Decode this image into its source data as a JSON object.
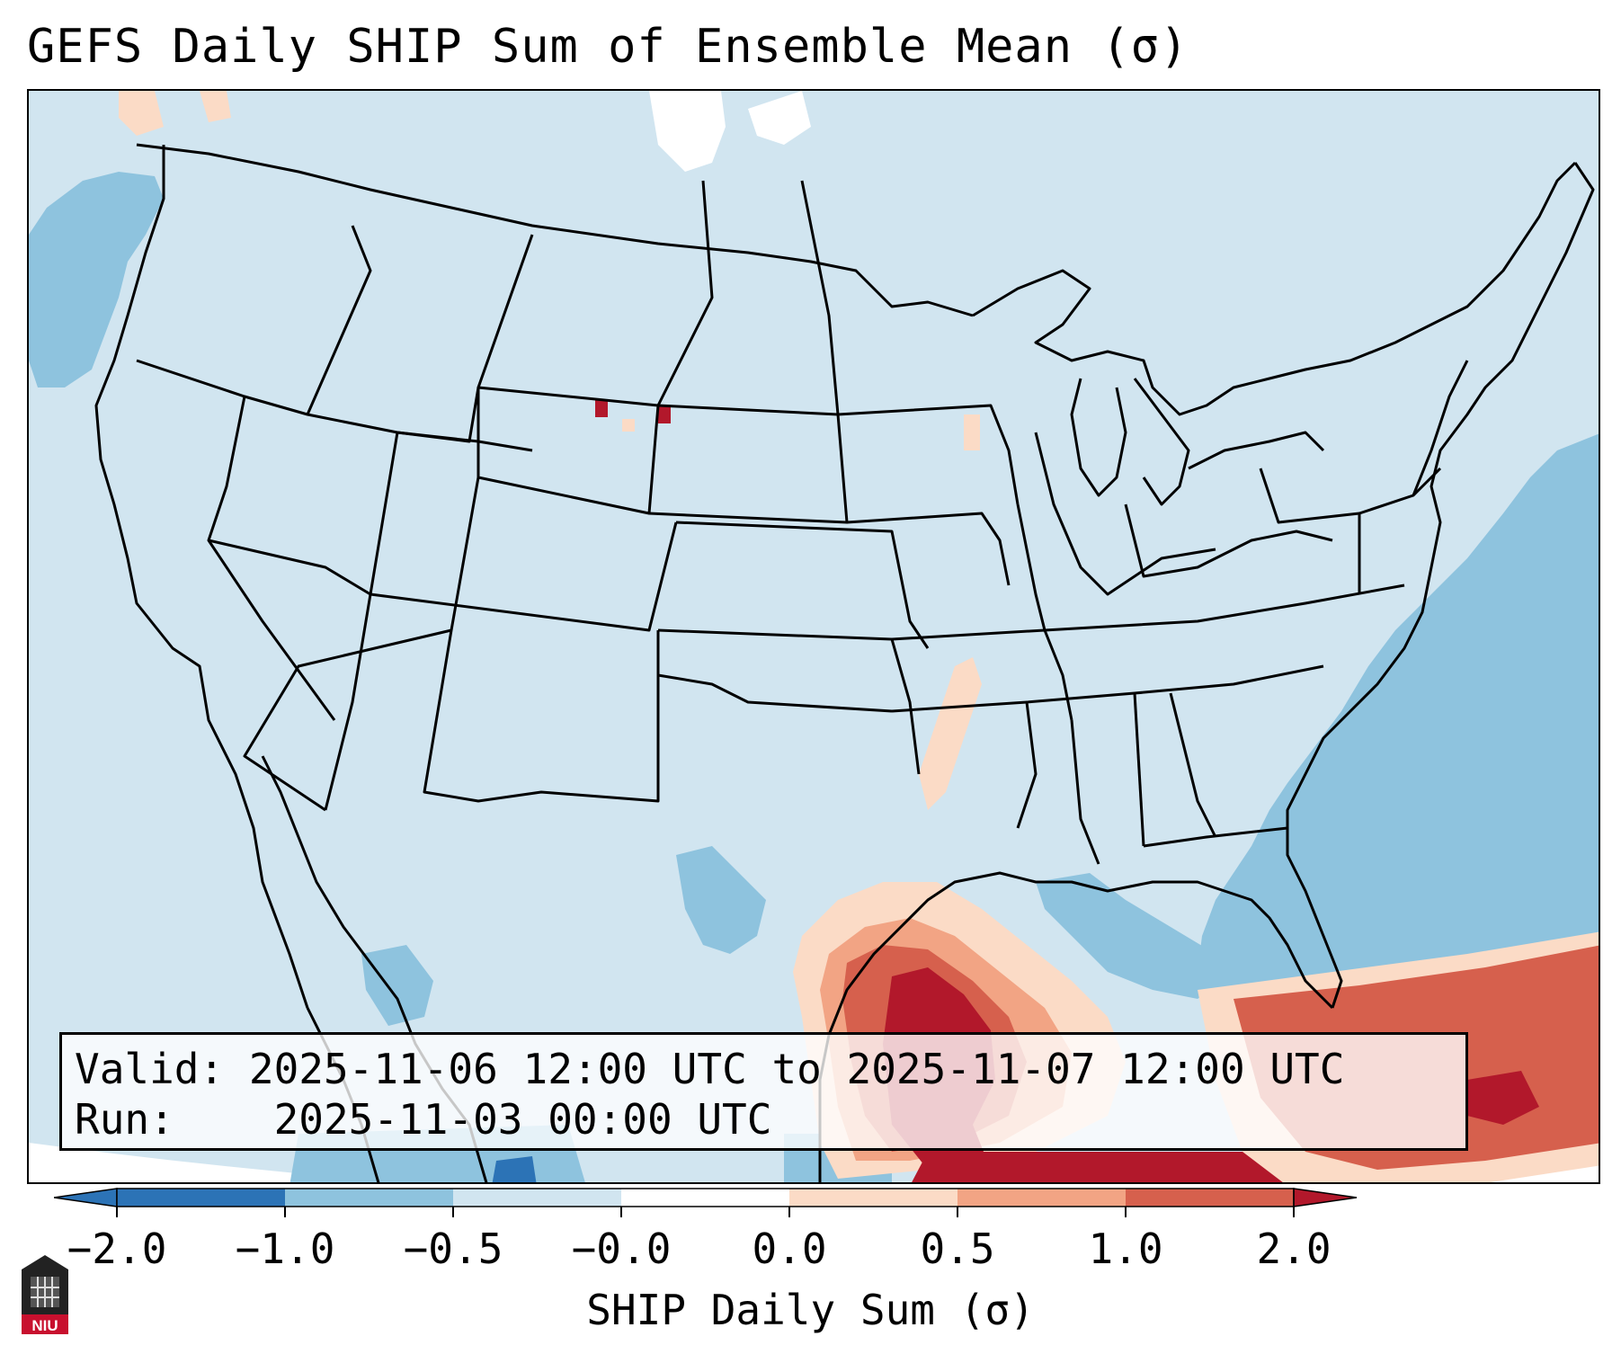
{
  "title": "GEFS Daily SHIP Sum of Ensemble Mean (σ)",
  "info": {
    "valid_label": "Valid:",
    "valid_value": "2025-11-06 12:00 UTC to 2025-11-07 12:00 UTC",
    "run_label": "Run:",
    "run_value": "2025-11-03 00:00 UTC"
  },
  "colorbar": {
    "label": "SHIP Daily Sum (σ)",
    "ticks": [
      "−2.0",
      "−1.0",
      "−0.5",
      "−0.0",
      "0.0",
      "0.5",
      "1.0",
      "2.0"
    ],
    "colors": [
      "#2c73b6",
      "#8ec3de",
      "#d1e5f0",
      "#ffffff",
      "#fbdbc6",
      "#f2a484",
      "#d6604d",
      "#b2182b"
    ],
    "extend": "both"
  },
  "map": {
    "projection": "Lambert conformal",
    "region": "Contiguous United States",
    "colors": {
      "land_base": "#d1e5f0",
      "light_blue": "#d1e5f0",
      "mid_blue": "#8ec3de",
      "dark_blue": "#2c73b6",
      "light_red": "#fbdbc6",
      "mid_red": "#f2a484",
      "red": "#d6604d",
      "dark_red": "#b2182b"
    }
  },
  "logo": {
    "text": "NIU",
    "icon": "university-logo-icon"
  }
}
